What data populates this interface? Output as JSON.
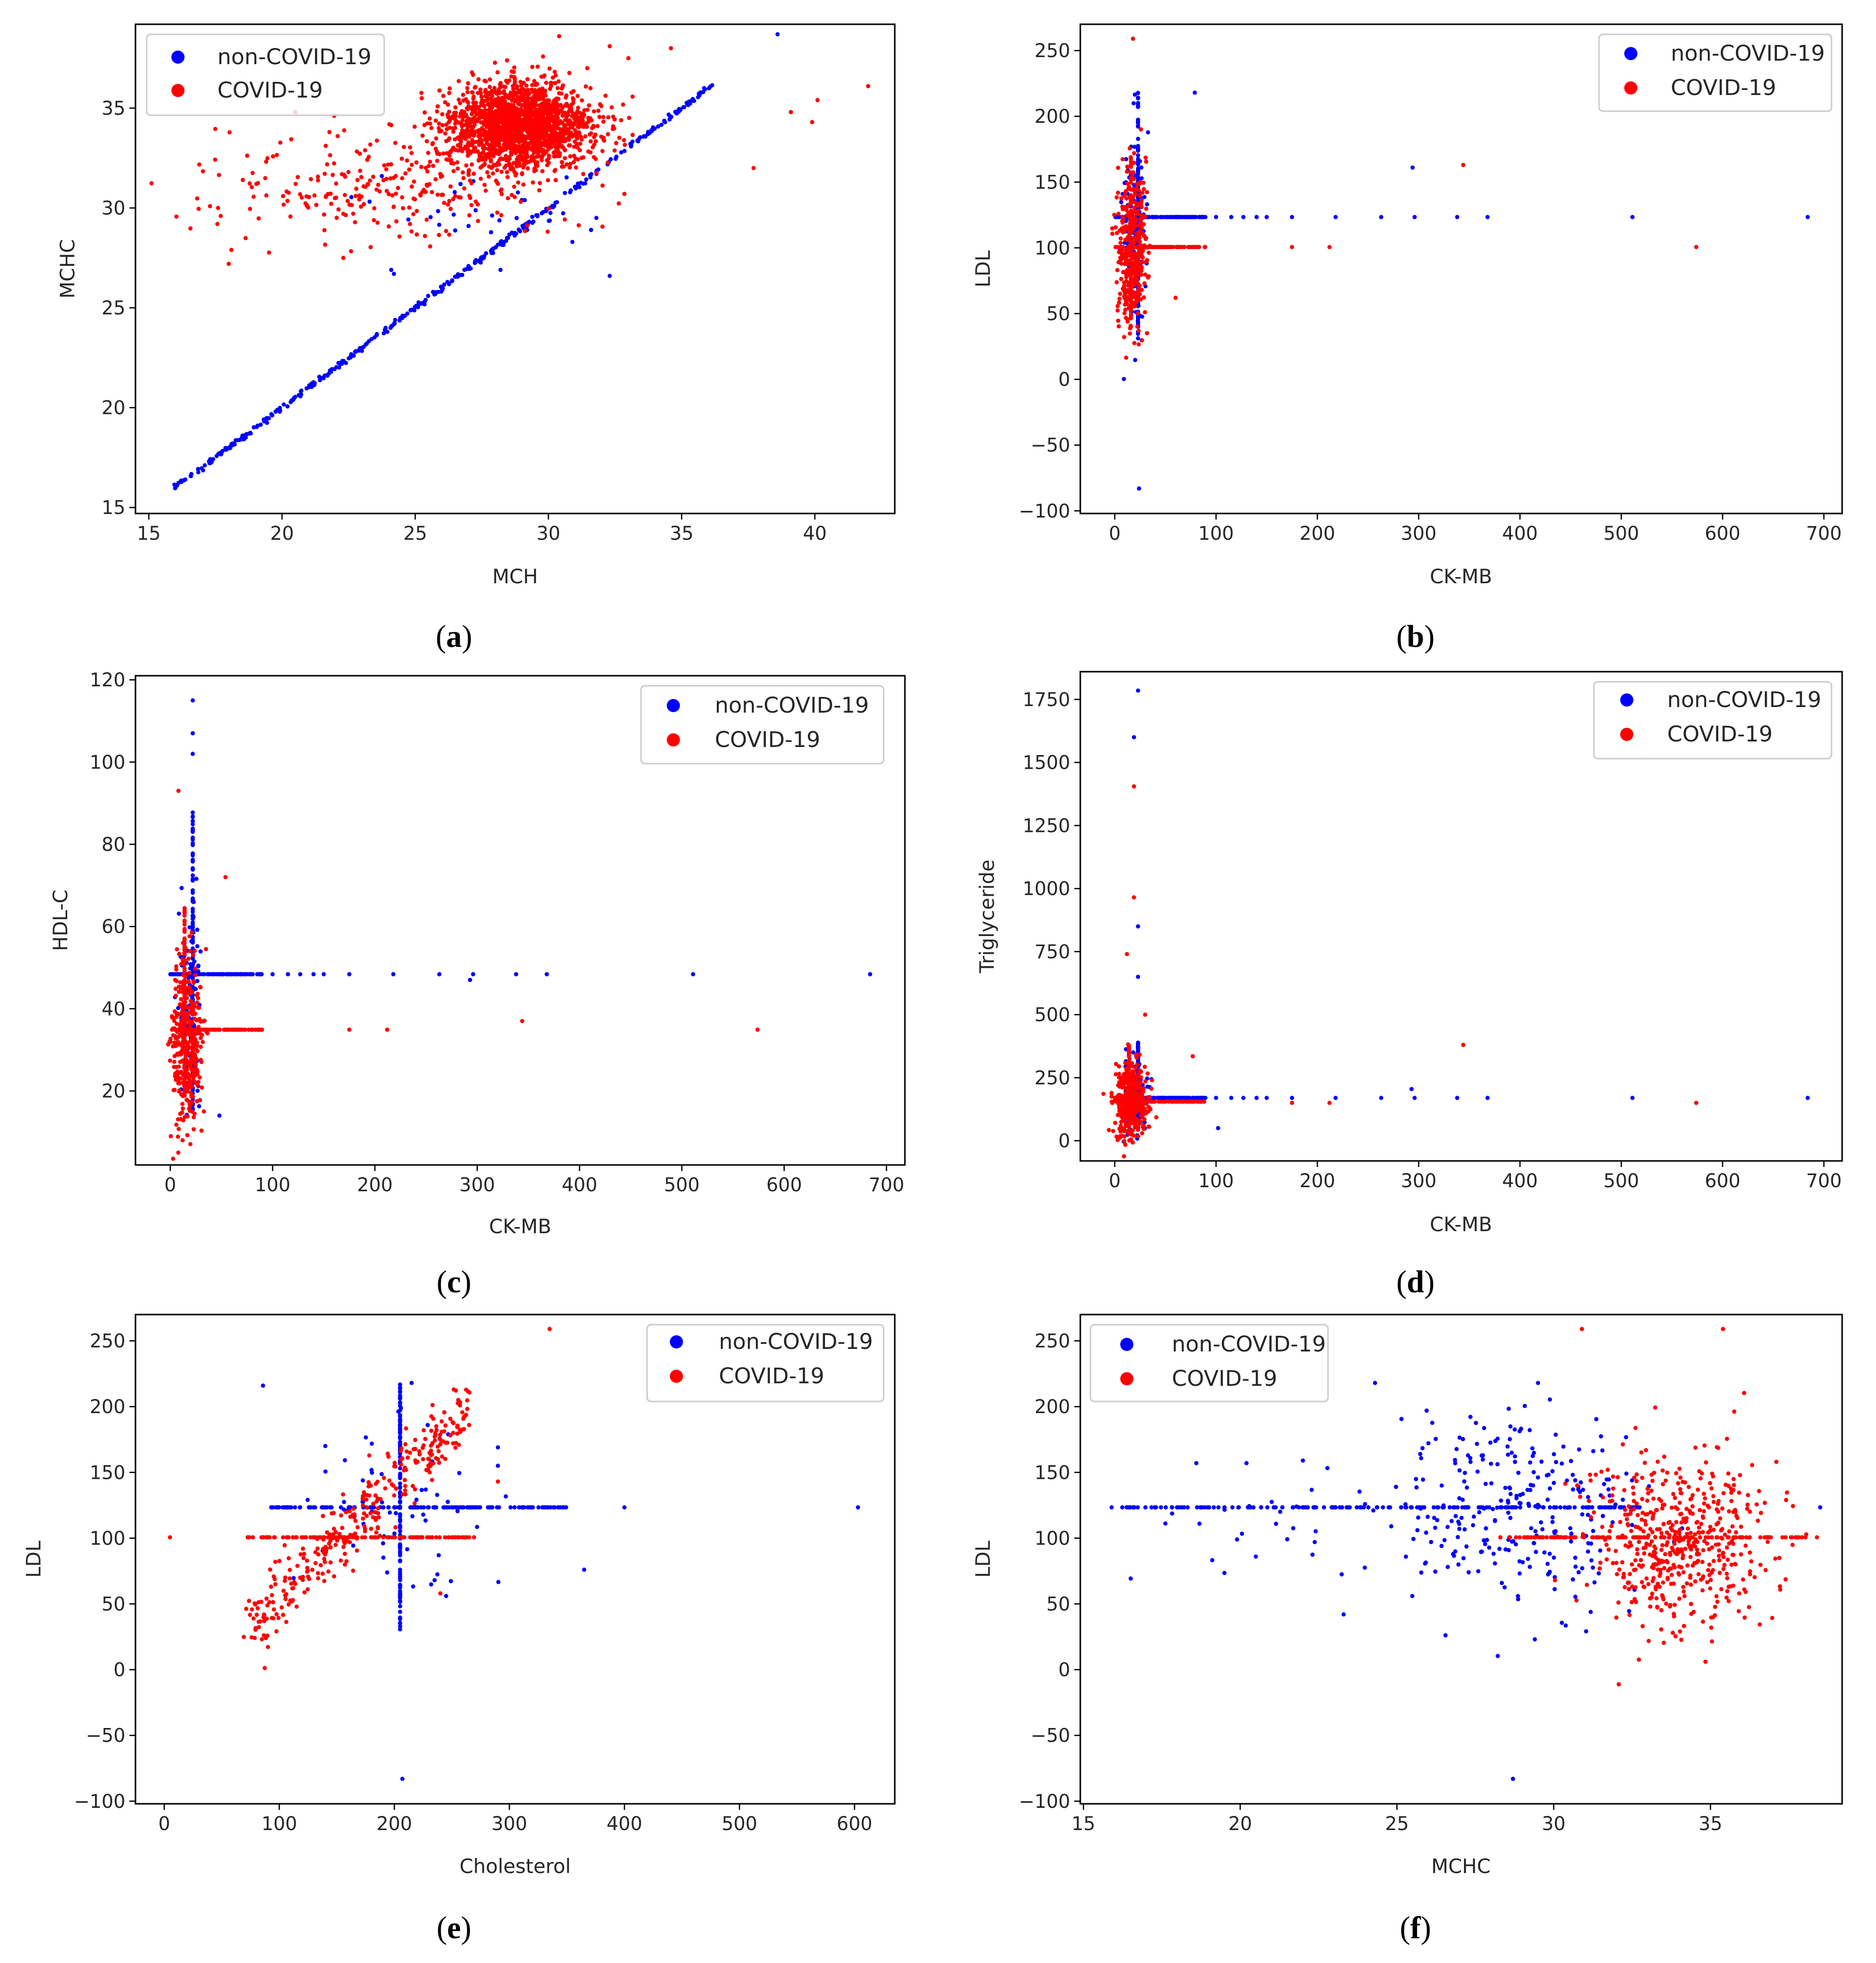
{
  "colors": {
    "non_covid": "#0000ff",
    "covid": "#ff0000",
    "axis": "#000000",
    "text": "#262626"
  },
  "chart_data": [
    {
      "id": "a",
      "type": "scatter",
      "caption": {
        "open": "(",
        "letter": "a",
        "close": ")"
      },
      "xlabel": "MCH",
      "ylabel": "MCHC",
      "xlim": [
        14.5,
        43.0
      ],
      "ylim": [
        14.7,
        39.2
      ],
      "xticks": [
        15,
        20,
        25,
        30,
        35,
        40
      ],
      "yticks": [
        15,
        20,
        25,
        30,
        35
      ],
      "legend": {
        "loc": "upper left",
        "entries": [
          "non-COVID-19",
          "COVID-19"
        ]
      },
      "generators": {
        "non_covid": [
          {
            "kind": "line",
            "n": 320,
            "x": [
              16.0,
              33.3
            ],
            "slope": 1.0,
            "intercept": 0.0,
            "noise": [
              0.05,
              0.05
            ]
          },
          {
            "kind": "line",
            "n": 60,
            "x": [
              33.3,
              36.1
            ],
            "slope": 1.0,
            "intercept": 0.0,
            "noise": [
              0.05,
              0.05
            ]
          },
          {
            "kind": "cloud",
            "n": 25,
            "cx": 27.8,
            "cy": 29.8,
            "sx": 2.2,
            "sy": 1.0
          }
        ],
        "covid": [
          {
            "kind": "cloud",
            "n": 1900,
            "cx": 28.9,
            "cy": 34.1,
            "sx": 1.35,
            "sy": 1.05
          },
          {
            "kind": "cloud",
            "n": 260,
            "cx": 24.0,
            "cy": 31.2,
            "sx": 3.4,
            "sy": 1.4
          }
        ]
      },
      "points": {
        "non_covid": [
          [
            16.0,
            16.0
          ],
          [
            38.6,
            38.7
          ],
          [
            24.1,
            26.9
          ],
          [
            24.2,
            26.7
          ],
          [
            32.3,
            26.6
          ],
          [
            28.2,
            26.9
          ],
          [
            29.0,
            30.4
          ],
          [
            26.7,
            31.2
          ],
          [
            27.0,
            29.1
          ],
          [
            29.2,
            28.9
          ],
          [
            30.9,
            28.3
          ],
          [
            31.6,
            28.9
          ],
          [
            31.8,
            29.5
          ]
        ],
        "covid": [
          [
            42.0,
            36.1
          ],
          [
            40.1,
            35.4
          ],
          [
            39.9,
            34.3
          ],
          [
            39.1,
            34.8
          ],
          [
            37.7,
            32.0
          ],
          [
            17.6,
            30.0
          ],
          [
            17.7,
            29.6
          ],
          [
            18.1,
            27.9
          ],
          [
            18.0,
            27.2
          ],
          [
            20.5,
            34.8
          ],
          [
            22.3,
            27.5
          ],
          [
            30.4,
            38.6
          ],
          [
            32.3,
            38.1
          ],
          [
            34.6,
            38.0
          ],
          [
            33.0,
            37.5
          ]
        ]
      }
    },
    {
      "id": "b",
      "type": "scatter",
      "caption": {
        "open": "(",
        "letter": "b",
        "close": ")"
      },
      "xlabel": "CK-MB",
      "ylabel": "LDL",
      "xlim": [
        -34,
        718
      ],
      "ylim": [
        -102,
        270
      ],
      "xticks": [
        0,
        100,
        200,
        300,
        400,
        500,
        600,
        700
      ],
      "yticks": [
        -100,
        -50,
        0,
        50,
        100,
        150,
        200,
        250
      ],
      "legend": {
        "loc": "upper right",
        "entries": [
          "non-COVID-19",
          "COVID-19"
        ]
      },
      "generators": {
        "non_covid": [
          {
            "kind": "hline",
            "n": 110,
            "x": [
              0,
              90
            ],
            "y": 123.4
          },
          {
            "kind": "vline",
            "n": 110,
            "x": 23,
            "y": [
              30,
              218
            ]
          },
          {
            "kind": "cloud",
            "n": 110,
            "cx": 19,
            "cy": 112,
            "sx": 6,
            "sy": 38
          }
        ],
        "covid": [
          {
            "kind": "hline",
            "n": 90,
            "x": [
              0,
              90
            ],
            "y": 100.6
          },
          {
            "kind": "vline",
            "n": 70,
            "x": 16,
            "y": [
              40,
              170
            ]
          },
          {
            "kind": "cloud",
            "n": 380,
            "cx": 17,
            "cy": 100,
            "sx": 7,
            "sy": 30
          }
        ]
      },
      "points": {
        "non_covid": [
          [
            100,
            123.4
          ],
          [
            115,
            123.4
          ],
          [
            127,
            123.4
          ],
          [
            140,
            123.4
          ],
          [
            150,
            123.4
          ],
          [
            175,
            123.4
          ],
          [
            218,
            123.4
          ],
          [
            263,
            123.4
          ],
          [
            296,
            123.4
          ],
          [
            338,
            123.4
          ],
          [
            368,
            123.4
          ],
          [
            511,
            123.4
          ],
          [
            684,
            123.4
          ],
          [
            294,
            161
          ],
          [
            79,
            218
          ],
          [
            24,
            -83
          ]
        ],
        "covid": [
          [
            175,
            100.6
          ],
          [
            212,
            100.6
          ],
          [
            574,
            100.6
          ],
          [
            344,
            163
          ],
          [
            18,
            259
          ],
          [
            60,
            62
          ]
        ]
      }
    },
    {
      "id": "c",
      "type": "scatter",
      "caption": {
        "open": "(",
        "letter": "c",
        "close": ")"
      },
      "xlabel": "CK-MB",
      "ylabel": "HDL-C",
      "xlim": [
        -34,
        718
      ],
      "ylim": [
        2,
        121
      ],
      "xticks": [
        0,
        100,
        200,
        300,
        400,
        500,
        600,
        700
      ],
      "yticks": [
        20,
        40,
        60,
        80,
        100,
        120
      ],
      "legend": {
        "loc": "upper right",
        "entries": [
          "non-COVID-19",
          "COVID-19"
        ]
      },
      "generators": {
        "non_covid": [
          {
            "kind": "hline",
            "n": 110,
            "x": [
              0,
              90
            ],
            "y": 48.4
          },
          {
            "kind": "vline",
            "n": 130,
            "x": 22,
            "y": [
              15,
              88
            ]
          },
          {
            "kind": "cloud",
            "n": 90,
            "cx": 19,
            "cy": 40,
            "sx": 6,
            "sy": 12
          }
        ],
        "covid": [
          {
            "kind": "hline",
            "n": 90,
            "x": [
              0,
              90
            ],
            "y": 34.9
          },
          {
            "kind": "vline",
            "n": 80,
            "x": 14,
            "y": [
              18,
              65
            ]
          },
          {
            "kind": "cloud",
            "n": 400,
            "cx": 17,
            "cy": 32,
            "sx": 7,
            "sy": 10
          }
        ]
      },
      "points": {
        "non_covid": [
          [
            100,
            48.4
          ],
          [
            115,
            48.4
          ],
          [
            127,
            48.4
          ],
          [
            140,
            48.4
          ],
          [
            150,
            48.4
          ],
          [
            175,
            48.4
          ],
          [
            218,
            48.4
          ],
          [
            263,
            48.4
          ],
          [
            296,
            48.4
          ],
          [
            338,
            48.4
          ],
          [
            368,
            48.4
          ],
          [
            511,
            48.4
          ],
          [
            684,
            48.4
          ],
          [
            22,
            115
          ],
          [
            22,
            107
          ],
          [
            22,
            102
          ],
          [
            293,
            47
          ],
          [
            48,
            14
          ]
        ],
        "covid": [
          [
            175,
            34.9
          ],
          [
            212,
            34.9
          ],
          [
            574,
            34.9
          ],
          [
            344,
            37
          ],
          [
            54,
            72
          ],
          [
            8,
            93
          ],
          [
            12,
            8
          ]
        ]
      }
    },
    {
      "id": "d",
      "type": "scatter",
      "caption": {
        "open": "(",
        "letter": "d",
        "close": ")"
      },
      "xlabel": "CK-MB",
      "ylabel": "Triglyceride",
      "xlim": [
        -34,
        718
      ],
      "ylim": [
        -80,
        1860
      ],
      "xticks": [
        0,
        100,
        200,
        300,
        400,
        500,
        600,
        700
      ],
      "yticks": [
        0,
        250,
        500,
        750,
        1000,
        1250,
        1500,
        1750
      ],
      "legend": {
        "loc": "upper right",
        "entries": [
          "non-COVID-19",
          "COVID-19"
        ]
      },
      "generators": {
        "non_covid": [
          {
            "kind": "hline",
            "n": 110,
            "x": [
              0,
              90
            ],
            "y": 170
          },
          {
            "kind": "vline",
            "n": 120,
            "x": 23,
            "y": [
              40,
              390
            ]
          },
          {
            "kind": "cloud",
            "n": 90,
            "cx": 20,
            "cy": 170,
            "sx": 7,
            "sy": 70
          }
        ],
        "covid": [
          {
            "kind": "hline",
            "n": 80,
            "x": [
              0,
              90
            ],
            "y": 155
          },
          {
            "kind": "vline",
            "n": 70,
            "x": 14,
            "y": [
              40,
              380
            ]
          },
          {
            "kind": "cloud",
            "n": 400,
            "cx": 16,
            "cy": 150,
            "sx": 8,
            "sy": 75
          }
        ]
      },
      "points": {
        "non_covid": [
          [
            100,
            170
          ],
          [
            115,
            170
          ],
          [
            127,
            170
          ],
          [
            140,
            170
          ],
          [
            150,
            170
          ],
          [
            175,
            170
          ],
          [
            218,
            170
          ],
          [
            263,
            170
          ],
          [
            296,
            170
          ],
          [
            338,
            170
          ],
          [
            368,
            170
          ],
          [
            511,
            170
          ],
          [
            684,
            170
          ],
          [
            23,
            1785
          ],
          [
            19,
            1600
          ],
          [
            23,
            850
          ],
          [
            23,
            650
          ],
          [
            293,
            205
          ],
          [
            102,
            50
          ]
        ],
        "covid": [
          [
            175,
            150
          ],
          [
            212,
            150
          ],
          [
            574,
            150
          ],
          [
            344,
            380
          ],
          [
            19,
            1405
          ],
          [
            19,
            965
          ],
          [
            12,
            740
          ],
          [
            30,
            500
          ],
          [
            77,
            335
          ]
        ]
      }
    },
    {
      "id": "e",
      "type": "scatter",
      "caption": {
        "open": "(",
        "letter": "e",
        "close": ")"
      },
      "xlabel": "Cholesterol",
      "ylabel": "LDL",
      "xlim": [
        -25,
        635
      ],
      "ylim": [
        -102,
        270
      ],
      "xticks": [
        0,
        100,
        200,
        300,
        400,
        500,
        600
      ],
      "yticks": [
        -100,
        -50,
        0,
        50,
        100,
        150,
        200,
        250
      ],
      "legend": {
        "loc": "upper right",
        "entries": [
          "non-COVID-19",
          "COVID-19"
        ]
      },
      "generators": {
        "non_covid": [
          {
            "kind": "hline",
            "n": 140,
            "x": [
              92,
              350
            ],
            "y": 123.4
          },
          {
            "kind": "vline",
            "n": 130,
            "x": 205,
            "y": [
              30,
              218
            ]
          },
          {
            "kind": "cloud",
            "n": 55,
            "cx": 205,
            "cy": 130,
            "sx": 40,
            "sy": 35
          }
        ],
        "covid": [
          {
            "kind": "hline",
            "n": 110,
            "x": [
              72,
              270
            ],
            "y": 100.6
          },
          {
            "kind": "band",
            "n": 330,
            "x": [
              72,
              265
            ],
            "slope": 0.84,
            "intercept": -28,
            "noise": [
              4,
              14
            ]
          }
        ]
      },
      "points": {
        "non_covid": [
          [
            400,
            123.4
          ],
          [
            603,
            123.4
          ],
          [
            365,
            76
          ],
          [
            290,
            169
          ],
          [
            207,
            -83
          ],
          [
            215,
            218
          ],
          [
            140,
            170
          ],
          [
            290,
            155
          ],
          [
            235,
            68
          ],
          [
            245,
            56
          ],
          [
            229,
            186
          ]
        ],
        "covid": [
          [
            5,
            100.6
          ],
          [
            335,
            259
          ],
          [
            265,
            186
          ],
          [
            240,
            58
          ],
          [
            225,
            160
          ],
          [
            290,
            143
          ]
        ]
      }
    },
    {
      "id": "f",
      "type": "scatter",
      "caption": {
        "open": "(",
        "letter": "f",
        "close": ")"
      },
      "xlabel": "MCHC",
      "ylabel": "LDL",
      "xlim": [
        14.9,
        39.2
      ],
      "ylim": [
        -102,
        270
      ],
      "xticks": [
        15,
        20,
        25,
        30,
        35
      ],
      "yticks": [
        -100,
        -50,
        0,
        50,
        100,
        150,
        200,
        250
      ],
      "legend": {
        "loc": "upper left",
        "entries": [
          "non-COVID-19",
          "COVID-19"
        ]
      },
      "generators": {
        "non_covid": [
          {
            "kind": "hline",
            "n": 180,
            "x": [
              15.9,
              32.8
            ],
            "y": 123.4
          },
          {
            "kind": "cloud",
            "n": 260,
            "cx": 28.8,
            "cy": 123,
            "sx": 1.8,
            "sy": 38
          },
          {
            "kind": "cloud",
            "n": 25,
            "cx": 21.5,
            "cy": 115,
            "sx": 2.5,
            "sy": 25
          }
        ],
        "covid": [
          {
            "kind": "hline",
            "n": 120,
            "x": [
              28.5,
              38.4
            ],
            "y": 100.6
          },
          {
            "kind": "cloud",
            "n": 520,
            "cx": 33.9,
            "cy": 94,
            "sx": 1.45,
            "sy": 33
          }
        ]
      },
      "points": {
        "non_covid": [
          [
            15.9,
            123.4
          ],
          [
            38.5,
            123.4
          ],
          [
            28.7,
            -83
          ],
          [
            24.3,
            218
          ],
          [
            29.5,
            218
          ],
          [
            18.6,
            157
          ],
          [
            20.2,
            157
          ],
          [
            22.0,
            159
          ],
          [
            23.3,
            42
          ],
          [
            20.5,
            86
          ],
          [
            19.9,
            99
          ],
          [
            18.7,
            111
          ]
        ],
        "covid": [
          [
            30.9,
            259
          ],
          [
            35.4,
            259
          ],
          [
            28.3,
            100.6
          ],
          [
            33.8,
            28
          ],
          [
            37.1,
            158
          ]
        ]
      }
    }
  ]
}
